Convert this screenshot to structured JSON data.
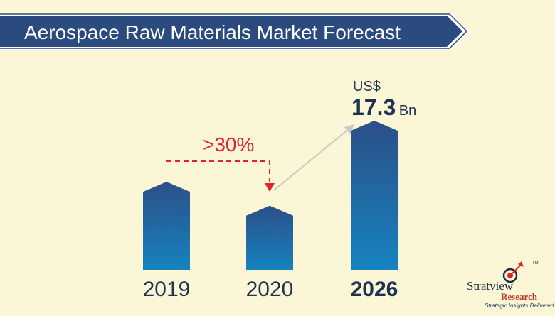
{
  "chart_data": {
    "type": "bar",
    "title": "Aerospace Raw Materials Market Forecast",
    "categories": [
      "2019",
      "2020",
      "2026"
    ],
    "highlighted_category": "2026",
    "values": [
      null,
      null,
      17.3
    ],
    "value_label": {
      "currency": "US$",
      "value": "17.3",
      "unit": "Bn"
    },
    "annotation": ">30%",
    "relative_heights": [
      0.59,
      0.43,
      1.0
    ],
    "grid": false,
    "legend": "none"
  },
  "colors": {
    "background": "#fbf6d6",
    "banner": "#2b4a7d",
    "bar_top": "#2d4f88",
    "bar_bottom": "#1583bf",
    "annotation": "#e3232b",
    "arrow": "#c8c8c8",
    "text_dark": "#1e3352"
  },
  "logo": {
    "brand": "Stratview",
    "sub": "Research",
    "tagline": "Strategic Insights Delivered",
    "tm": "TM"
  }
}
